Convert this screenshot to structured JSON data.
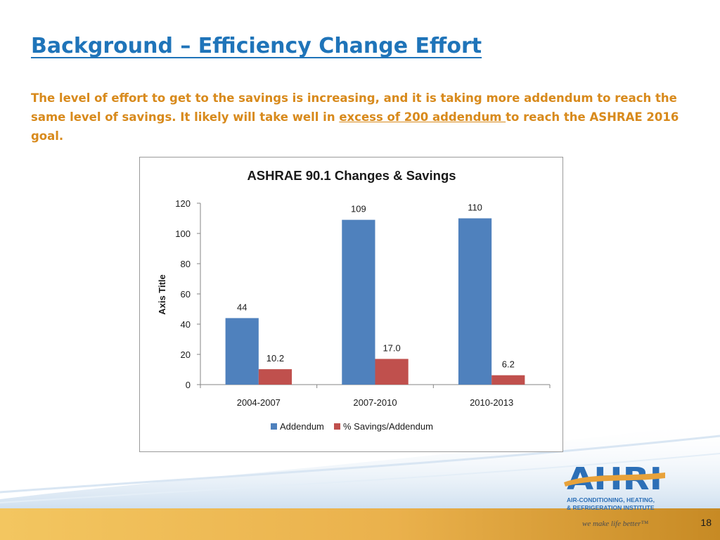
{
  "slide": {
    "title": "Background – Efficiency Change Effort",
    "body_part1": "The level of effort to get to the savings is increasing, and it is taking more addendum to reach the same level of savings.   It likely will take well in ",
    "body_underlined": "excess of 200 addendum ",
    "body_part2": "to reach the ASHRAE  2016 goal.",
    "page_number": "18"
  },
  "chart_data": {
    "type": "bar",
    "title": "ASHRAE 90.1 Changes & Savings",
    "xlabel": "",
    "ylabel": "Axis Title",
    "categories": [
      "2004-2007",
      "2007-2010",
      "2010-2013"
    ],
    "series": [
      {
        "name": "Addendum",
        "values": [
          44,
          109,
          110
        ],
        "labels": [
          "44",
          "109",
          "110"
        ],
        "color": "#4f81bd"
      },
      {
        "name": "% Savings/Addendum",
        "values": [
          10.2,
          17.0,
          6.2
        ],
        "labels": [
          "10.2",
          "17.0",
          "6.2"
        ],
        "color": "#c0504d"
      }
    ],
    "ylim": [
      0,
      120
    ],
    "yticks": [
      0,
      20,
      40,
      60,
      80,
      100,
      120
    ],
    "grid": false,
    "legend": "bottom"
  },
  "branding": {
    "logo_text": "AHRI",
    "logo_line1": "AIR-CONDITIONING, HEATING,",
    "logo_line2": "& REFRIGERATION INSTITUTE",
    "tagline": "we make life better™",
    "colors": {
      "blue": "#2c6fb7",
      "orange": "#e8a23a",
      "gold": "#d5a130",
      "title_blue": "#1f74b9",
      "body_orange": "#d88a1c"
    }
  }
}
